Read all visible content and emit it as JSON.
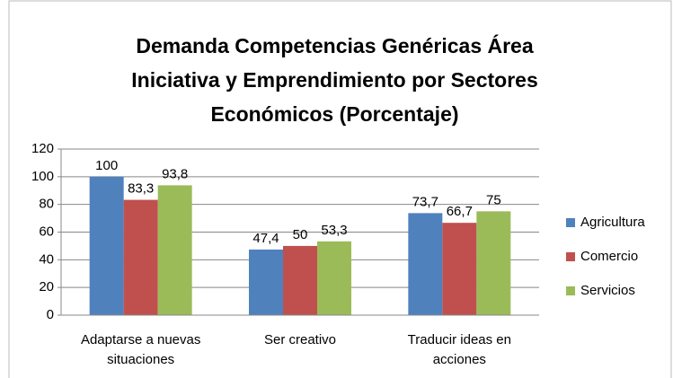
{
  "chart_data": {
    "type": "bar",
    "title": "Demanda Competencias Genéricas Área Iniciativa y Emprendimiento por Sectores Económicos (Porcentaje)",
    "categories": [
      "Adaptarse a nuevas situaciones",
      "Ser creativo",
      "Traducir ideas en acciones"
    ],
    "series": [
      {
        "name": "Agricultura",
        "color": "#4f81bd",
        "values": [
          100,
          47.4,
          73.7
        ],
        "value_labels": [
          "100",
          "47,4",
          "73,7"
        ]
      },
      {
        "name": "Comercio",
        "color": "#c0504d",
        "values": [
          83.3,
          50,
          66.7
        ],
        "value_labels": [
          "83,3",
          "50",
          "66,7"
        ]
      },
      {
        "name": "Servicios",
        "color": "#9bbb59",
        "values": [
          93.8,
          53.3,
          75
        ],
        "value_labels": [
          "93,8",
          "53,3",
          "75"
        ]
      }
    ],
    "ylim": [
      0,
      120
    ],
    "yticks": [
      0,
      20,
      40,
      60,
      80,
      100,
      120
    ],
    "grid": true,
    "legend": "right"
  }
}
